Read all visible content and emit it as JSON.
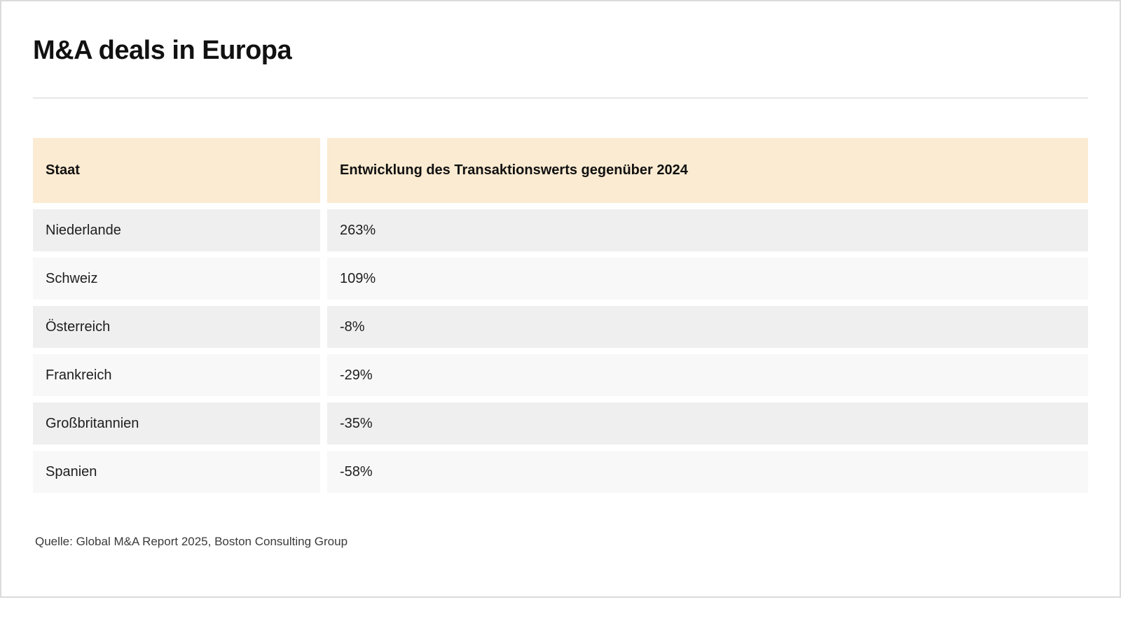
{
  "page": {
    "title": "M&A deals in Europa",
    "source_note": "Quelle: Global M&A Report 2025, Boston Consulting Group"
  },
  "chart_data": {
    "type": "table",
    "title": "M&A deals in Europa",
    "columns": [
      "Staat",
      "Entwicklung des Transaktionswerts gegenüber 2024"
    ],
    "rows": [
      [
        "Niederlande",
        "263%"
      ],
      [
        "Schweiz",
        "109%"
      ],
      [
        "Österreich",
        "-8%"
      ],
      [
        "Frankreich",
        "-29%"
      ],
      [
        "Großbritannien",
        "-35%"
      ],
      [
        "Spanien",
        "-58%"
      ]
    ],
    "categories": [
      "Niederlande",
      "Schweiz",
      "Österreich",
      "Frankreich",
      "Großbritannien",
      "Spanien"
    ],
    "values_pct": [
      263,
      109,
      -8,
      -29,
      -35,
      -58
    ],
    "value_unit": "%",
    "value_reference": "gegenüber 2024",
    "source": "Quelle: Global M&A Report 2025, Boston Consulting Group"
  },
  "colors": {
    "header_bg": "#fbebd2",
    "row_dark_bg": "#efefef",
    "row_light_bg": "#f8f8f8",
    "border": "#dbdbdb",
    "divider": "#e7e7e4",
    "text": "#111111",
    "source_text": "#3a3a3a"
  }
}
